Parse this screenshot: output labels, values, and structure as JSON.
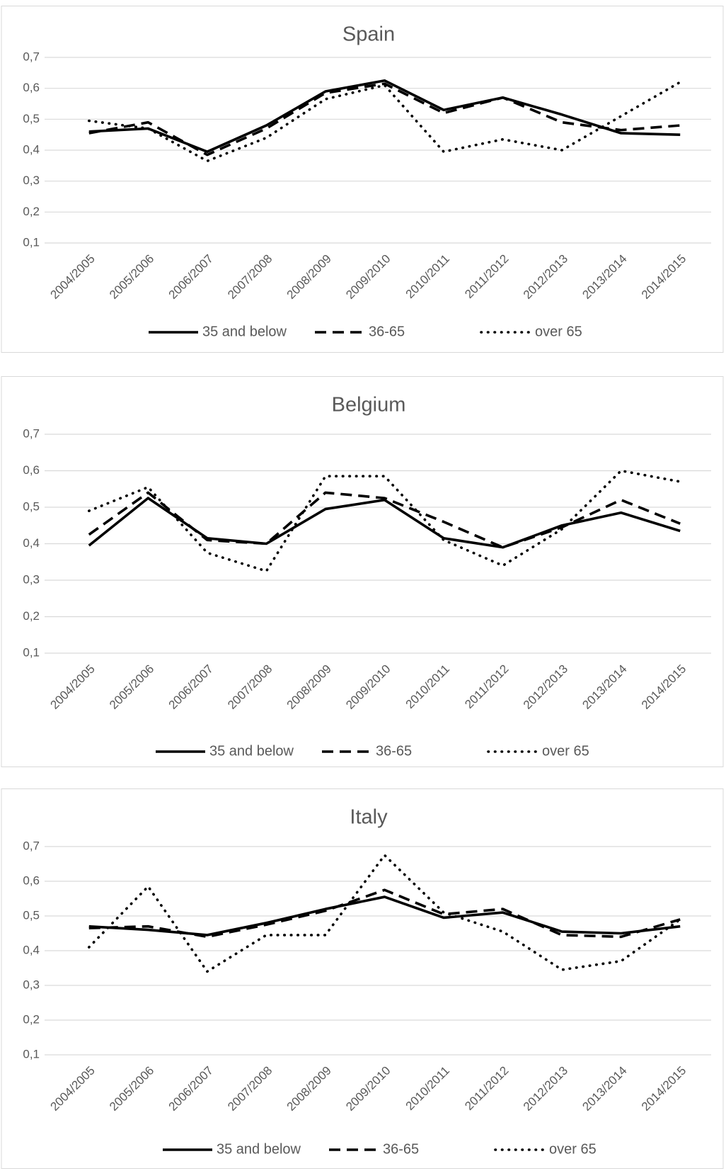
{
  "chart_data": [
    {
      "type": "line",
      "title": "Spain",
      "categories": [
        "2004/2005",
        "2005/2006",
        "2006/2007",
        "2007/2008",
        "2008/2009",
        "2009/2010",
        "2010/2011",
        "2011/2012",
        "2012/2013",
        "2013/2014",
        "2014/2015"
      ],
      "series": [
        {
          "name": "35 and below",
          "color": "#000000",
          "line_style": "solid",
          "values": [
            0.46,
            0.47,
            0.395,
            0.48,
            0.59,
            0.625,
            0.53,
            0.57,
            0.515,
            0.455,
            0.45
          ]
        },
        {
          "name": "36-65",
          "color": "#000000",
          "line_style": "dashed",
          "values": [
            0.455,
            0.49,
            0.385,
            0.47,
            0.585,
            0.615,
            0.52,
            0.57,
            0.49,
            0.465,
            0.48
          ]
        },
        {
          "name": "over 65",
          "color": "#000000",
          "line_style": "dotted",
          "values": [
            0.495,
            0.47,
            0.365,
            0.44,
            0.565,
            0.61,
            0.395,
            0.435,
            0.4,
            0.51,
            0.62
          ]
        }
      ],
      "ylim": [
        0.1,
        0.7
      ],
      "yticks": [
        {
          "value": 0.1,
          "label": "0,1"
        },
        {
          "value": 0.2,
          "label": "0,2"
        },
        {
          "value": 0.3,
          "label": "0,3"
        },
        {
          "value": 0.4,
          "label": "0,4"
        },
        {
          "value": 0.5,
          "label": "0,5"
        },
        {
          "value": 0.6,
          "label": "0,6"
        },
        {
          "value": 0.7,
          "label": "0,7"
        }
      ],
      "grid": true,
      "legend": "bottom"
    },
    {
      "type": "line",
      "title": "Belgium",
      "categories": [
        "2004/2005",
        "2005/2006",
        "2006/2007",
        "2007/2008",
        "2008/2009",
        "2009/2010",
        "2010/2011",
        "2011/2012",
        "2012/2013",
        "2013/2014",
        "2014/2015"
      ],
      "series": [
        {
          "name": "35 and below",
          "color": "#000000",
          "line_style": "solid",
          "values": [
            0.395,
            0.525,
            0.415,
            0.4,
            0.495,
            0.52,
            0.415,
            0.39,
            0.45,
            0.485,
            0.435
          ]
        },
        {
          "name": "36-65",
          "color": "#000000",
          "line_style": "dashed",
          "values": [
            0.425,
            0.54,
            0.41,
            0.4,
            0.54,
            0.525,
            0.46,
            0.39,
            0.445,
            0.52,
            0.455
          ]
        },
        {
          "name": "over 65",
          "color": "#000000",
          "line_style": "dotted",
          "values": [
            0.49,
            0.555,
            0.375,
            0.325,
            0.585,
            0.585,
            0.41,
            0.34,
            0.44,
            0.6,
            0.57
          ]
        }
      ],
      "ylim": [
        0.1,
        0.7
      ],
      "yticks": [
        {
          "value": 0.1,
          "label": "0,1"
        },
        {
          "value": 0.2,
          "label": "0,2"
        },
        {
          "value": 0.3,
          "label": "0,3"
        },
        {
          "value": 0.4,
          "label": "0,4"
        },
        {
          "value": 0.5,
          "label": "0,5"
        },
        {
          "value": 0.6,
          "label": "0,6"
        },
        {
          "value": 0.7,
          "label": "0,7"
        }
      ],
      "grid": true,
      "legend": "bottom"
    },
    {
      "type": "line",
      "title": "Italy",
      "categories": [
        "2004/2005",
        "2005/2006",
        "2006/2007",
        "2007/2008",
        "2008/2009",
        "2009/2010",
        "2010/2011",
        "2011/2012",
        "2012/2013",
        "2013/2014",
        "2014/2015"
      ],
      "series": [
        {
          "name": "35 and below",
          "color": "#000000",
          "line_style": "solid",
          "values": [
            0.47,
            0.46,
            0.445,
            0.48,
            0.52,
            0.555,
            0.495,
            0.51,
            0.455,
            0.45,
            0.47
          ]
        },
        {
          "name": "36-65",
          "color": "#000000",
          "line_style": "dashed",
          "values": [
            0.465,
            0.47,
            0.44,
            0.475,
            0.515,
            0.575,
            0.505,
            0.52,
            0.445,
            0.44,
            0.49
          ]
        },
        {
          "name": "over 65",
          "color": "#000000",
          "line_style": "dotted",
          "values": [
            0.41,
            0.585,
            0.34,
            0.445,
            0.445,
            0.675,
            0.51,
            0.455,
            0.345,
            0.37,
            0.49
          ]
        }
      ],
      "ylim": [
        0.1,
        0.7
      ],
      "yticks": [
        {
          "value": 0.1,
          "label": "0,1"
        },
        {
          "value": 0.2,
          "label": "0,2"
        },
        {
          "value": 0.3,
          "label": "0,3"
        },
        {
          "value": 0.4,
          "label": "0,4"
        },
        {
          "value": 0.5,
          "label": "0,5"
        },
        {
          "value": 0.6,
          "label": "0,6"
        },
        {
          "value": 0.7,
          "label": "0,7"
        }
      ],
      "grid": true,
      "legend": "bottom"
    }
  ]
}
